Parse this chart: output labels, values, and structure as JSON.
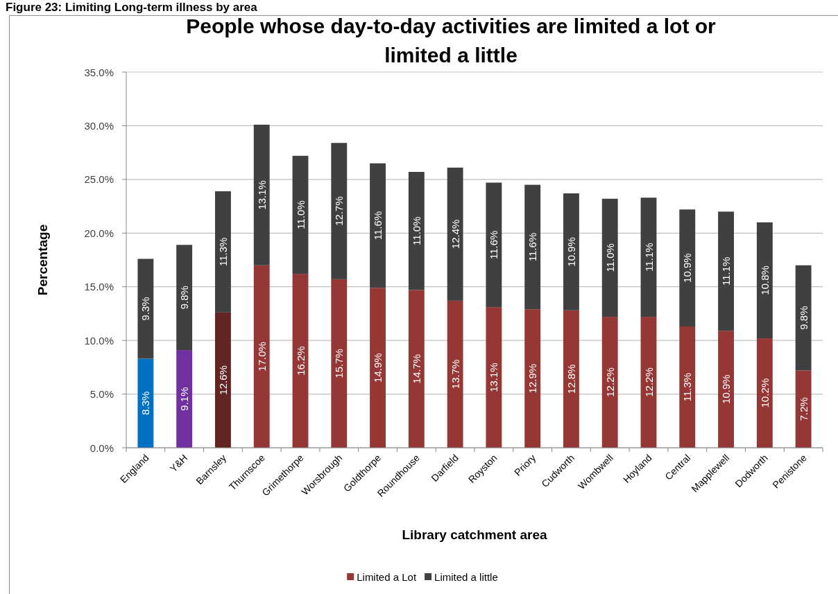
{
  "chart_data": {
    "type": "bar",
    "stacked": true,
    "title": "People whose day-to-day activities are limited a lot or limited a little",
    "xlabel": "Library catchment area",
    "ylabel": "Percentage",
    "annotations": [
      "Figure 23: Limiting Long-term illness by area"
    ],
    "categories": [
      "England",
      "Y&H",
      "Barnsley",
      "Thurnscoe",
      "Grimethorpe",
      "Worsbrough",
      "Goldthorpe",
      "Roundhouse",
      "Darfield",
      "Royston",
      "Priory",
      "Cudworth",
      "Wombwell",
      "Hoyland",
      "Central",
      "Mapplewell",
      "Dodworth",
      "Penistone"
    ],
    "series": [
      {
        "name": "Limited a Lot",
        "color": "#953735",
        "colors": [
          "#0070c0",
          "#7030a0",
          "#632523",
          "#953735",
          "#953735",
          "#953735",
          "#953735",
          "#953735",
          "#953735",
          "#953735",
          "#953735",
          "#953735",
          "#953735",
          "#953735",
          "#953735",
          "#953735",
          "#953735",
          "#953735"
        ],
        "values": [
          8.3,
          9.1,
          12.6,
          17.0,
          16.2,
          15.7,
          14.9,
          14.7,
          13.7,
          13.1,
          12.9,
          12.8,
          12.2,
          12.2,
          11.3,
          10.9,
          10.2,
          7.2
        ],
        "value_labels": [
          "8.3%",
          "9.1%",
          "12.6%",
          "17.0%",
          "16.2%",
          "15.7%",
          "14.9%",
          "14.7%",
          "13.7%",
          "13.1%",
          "12.9%",
          "12.8%",
          "12.2%",
          "12.2%",
          "11.3%",
          "10.9%",
          "10.2%",
          "7.2%"
        ]
      },
      {
        "name": "Limited a little",
        "color": "#404040",
        "values": [
          9.3,
          9.8,
          11.3,
          13.1,
          11.0,
          12.7,
          11.6,
          11.0,
          12.4,
          11.6,
          11.6,
          10.9,
          11.0,
          11.1,
          10.9,
          11.1,
          10.8,
          9.8
        ],
        "value_labels": [
          "9.3%",
          "9.8%",
          "11.3%",
          "13.1%",
          "11.0%",
          "12.7%",
          "11.6%",
          "11.0%",
          "12.4%",
          "11.6%",
          "11.6%",
          "10.9%",
          "11.0%",
          "11.1%",
          "10.9%",
          "11.1%",
          "10.8%",
          "9.8%"
        ]
      }
    ],
    "ylim": [
      0,
      35
    ],
    "yticks": [
      {
        "value": 0,
        "label": "0.0%"
      },
      {
        "value": 5,
        "label": "5.0%"
      },
      {
        "value": 10,
        "label": "10.0%"
      },
      {
        "value": 15,
        "label": "15.0%"
      },
      {
        "value": 20,
        "label": "20.0%"
      },
      {
        "value": 25,
        "label": "25.0%"
      },
      {
        "value": 30,
        "label": "30.0%"
      },
      {
        "value": 35,
        "label": "35.0%"
      }
    ],
    "grid": "y",
    "legend": "bottom"
  }
}
